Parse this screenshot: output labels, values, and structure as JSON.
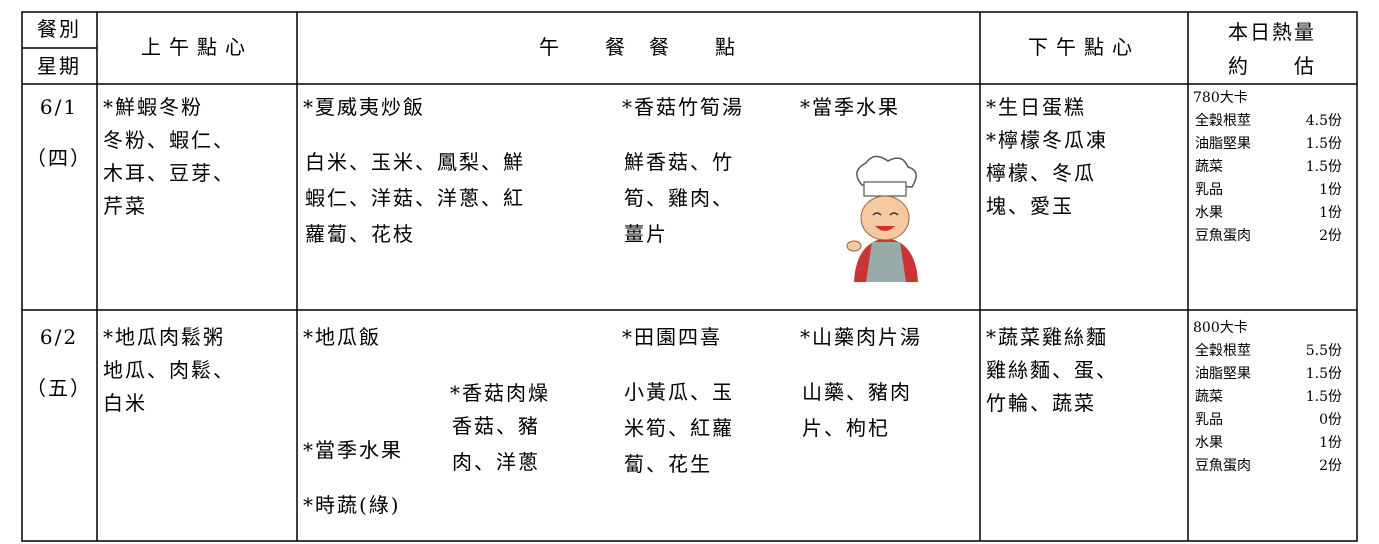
{
  "header": {
    "meal_label": "餐別",
    "day_label": "星期",
    "morning": "上午點心",
    "lunch": "午　　餐　餐　　點",
    "afternoon": "下午點心",
    "calories": "本日熱量",
    "estimate": "約　　估"
  },
  "rows": [
    {
      "date": "6/1",
      "weekday": "（四）",
      "morning": [
        "*鮮蝦冬粉",
        "冬粉、蝦仁、",
        "木耳、豆芽、",
        "芹菜"
      ],
      "lunch": [
        {
          "title": "*夏威夷炒飯",
          "lines": [
            "白米、玉米、鳳梨、鮮",
            "蝦仁、洋菇、洋蔥、紅",
            "蘿蔔、花枝"
          ]
        },
        {
          "title": "*香菇竹筍湯",
          "lines": [
            "鮮香菇、竹",
            "筍、雞肉、",
            "薑片"
          ]
        },
        {
          "title": "*當季水果",
          "lines": []
        }
      ],
      "afternoon": [
        "*生日蛋糕",
        "*檸檬冬瓜凍",
        "檸檬、冬瓜",
        "塊、愛玉"
      ],
      "calories": {
        "total": "780大卡",
        "items": [
          {
            "name": "全穀根莖",
            "amount": "4.5份"
          },
          {
            "name": "油脂堅果",
            "amount": "1.5份"
          },
          {
            "name": "蔬菜",
            "amount": "1.5份"
          },
          {
            "name": "乳品",
            "amount": "1份"
          },
          {
            "name": "水果",
            "amount": "1份"
          },
          {
            "name": "豆魚蛋肉",
            "amount": "2份"
          }
        ]
      }
    },
    {
      "date": "6/2",
      "weekday": "（五）",
      "morning": [
        "*地瓜肉鬆粥",
        "地瓜、肉鬆、",
        "白米"
      ],
      "lunch": [
        {
          "title": "*地瓜飯",
          "lines": []
        },
        {
          "title": "*香菇肉燥",
          "lines": [
            "香菇、豬",
            "肉、洋蔥"
          ]
        },
        {
          "title": "*田園四喜",
          "lines": [
            "小黃瓜、玉",
            "米筍、紅蘿",
            "蔔、花生"
          ]
        },
        {
          "title": "*山藥肉片湯",
          "lines": [
            "山藥、豬肉",
            "片、枸杞"
          ]
        },
        {
          "title": "*當季水果",
          "lines": []
        },
        {
          "title": "*時蔬(綠)",
          "lines": []
        }
      ],
      "afternoon": [
        "*蔬菜雞絲麵",
        "雞絲麵、蛋、",
        "竹輪、蔬菜"
      ],
      "calories": {
        "total": "800大卡",
        "items": [
          {
            "name": "全穀根莖",
            "amount": "5.5份"
          },
          {
            "name": "油脂堅果",
            "amount": "1.5份"
          },
          {
            "name": "蔬菜",
            "amount": "1.5份"
          },
          {
            "name": "乳品",
            "amount": "0份"
          },
          {
            "name": "水果",
            "amount": "1份"
          },
          {
            "name": "豆魚蛋肉",
            "amount": "2份"
          }
        ]
      }
    }
  ]
}
